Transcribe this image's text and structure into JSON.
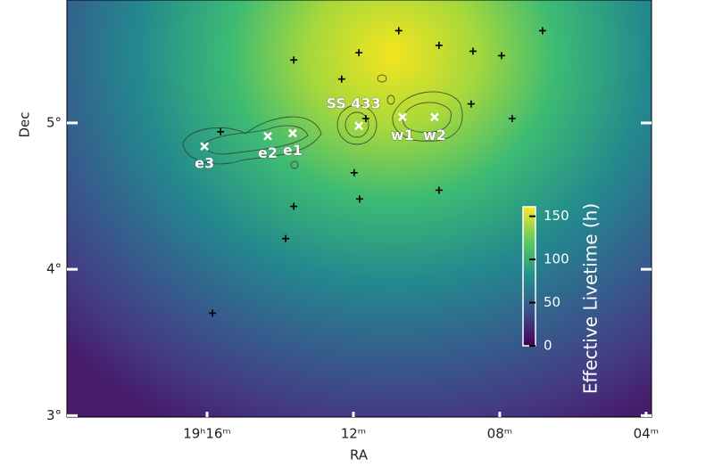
{
  "chart_data": {
    "type": "skymap",
    "xlabel": "RA",
    "ylabel": "Dec",
    "xlim": [
      19.83,
      3.85
    ],
    "ylim": [
      2.99,
      5.84
    ],
    "xticks": [
      {
        "value": 16,
        "label": "19ʰ16ᵐ"
      },
      {
        "value": 12,
        "label": "12ᵐ"
      },
      {
        "value": 8,
        "label": "08ᵐ"
      },
      {
        "value": 4,
        "label": "04ᵐ"
      }
    ],
    "yticks": [
      {
        "value": 3,
        "label": "3°"
      },
      {
        "value": 4,
        "label": "4°"
      },
      {
        "value": 5,
        "label": "5°"
      }
    ],
    "sources": {
      "color": "#000000",
      "x": [
        10.76,
        6.83,
        9.66,
        8.73,
        7.95,
        13.63,
        11.85,
        12.32,
        11.66,
        8.78,
        7.66,
        15.63,
        11.98,
        9.66,
        13.63,
        11.83,
        13.85,
        15.85
      ],
      "y": [
        5.63,
        5.63,
        5.53,
        5.49,
        5.46,
        5.43,
        5.48,
        5.3,
        5.03,
        5.13,
        5.03,
        4.94,
        4.66,
        4.54,
        4.43,
        4.48,
        4.21,
        3.7
      ]
    },
    "regions": [
      {
        "name": "e3",
        "x": 16.07,
        "y": 4.84
      },
      {
        "name": "e2",
        "x": 14.34,
        "y": 4.91
      },
      {
        "name": "e1",
        "x": 13.66,
        "y": 4.93
      },
      {
        "name": "SS 433",
        "x": 11.85,
        "y": 4.98
      },
      {
        "name": "w1",
        "x": 10.66,
        "y": 5.04
      },
      {
        "name": "w2",
        "x": 9.78,
        "y": 5.04
      }
    ],
    "colorbar": {
      "label": "Effective Livetime (h)",
      "lim": [
        0,
        161
      ],
      "ticks": [
        0,
        50,
        100,
        150
      ],
      "colors": [
        "#440154",
        "#3b528b",
        "#21918c",
        "#5ec962",
        "#fde725"
      ]
    }
  }
}
